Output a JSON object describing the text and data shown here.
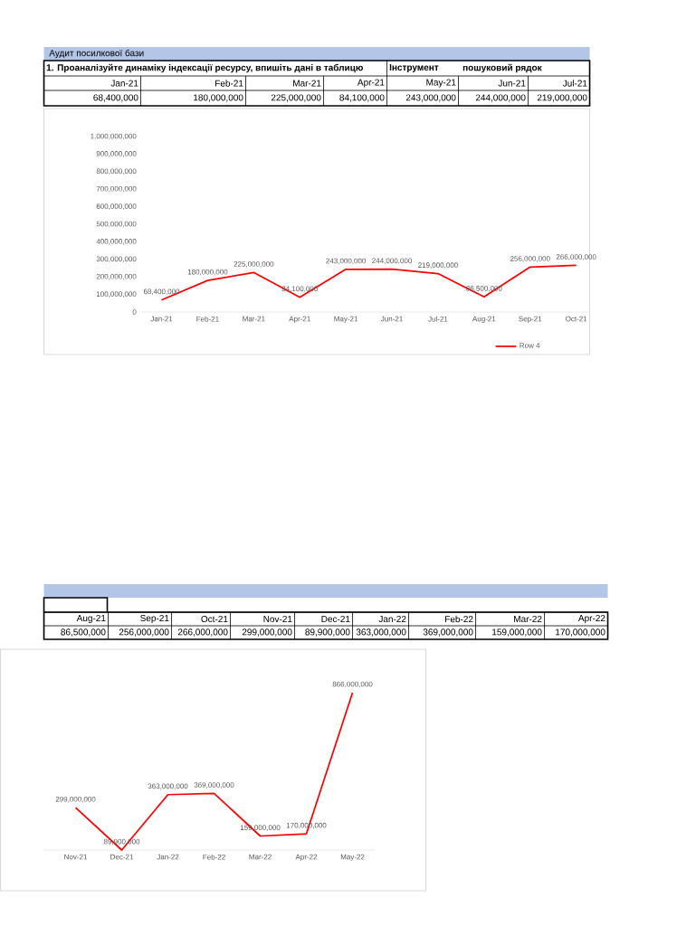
{
  "chart_data": [
    {
      "type": "other",
      "title": "Аудит посилкової бази",
      "annotations": [
        "1. Проаналізуйте динаміку індексації ресурсу, впишіть дані в таблицю",
        "Інструмент",
        "пошуковий рядок"
      ],
      "categories": [
        "Jan-21",
        "Feb-21",
        "Mar-21",
        "Apr-21",
        "May-21",
        "Jun-21",
        "Jul-21"
      ],
      "value_labels": [
        "68,400,000",
        "180,000,000",
        "225,000,000",
        "84,100,000",
        "243,000,000",
        "244,000,000",
        "219,000,000"
      ]
    },
    {
      "type": "line",
      "categories": [
        "Jan-21",
        "Feb-21",
        "Mar-21",
        "Apr-21",
        "May-21",
        "Jun-21",
        "Jul-21",
        "Aug-21",
        "Sep-21",
        "Oct-21"
      ],
      "series": [
        {
          "name": "Row 4",
          "color": "#ff0000",
          "values": [
            68400000,
            180000000,
            225000000,
            84100000,
            243000000,
            244000000,
            219000000,
            86500000,
            256000000,
            266000000
          ],
          "value_labels": [
            "68,400,000",
            "180,000,000",
            "225,000,000",
            "84,100,000",
            "243,000,000",
            "244,000,000",
            "219,000,000",
            "86,500,000",
            "256,000,000",
            "266,000,000"
          ]
        }
      ],
      "ylim": [
        0,
        1000000000
      ],
      "yticks": [
        {
          "value": 0,
          "label": "0"
        },
        {
          "value": 100000000,
          "label": "100,000,000"
        },
        {
          "value": 200000000,
          "label": "200,000,000"
        },
        {
          "value": 300000000,
          "label": "300,000,000"
        },
        {
          "value": 400000000,
          "label": "400,000,000"
        },
        {
          "value": 500000000,
          "label": "500,000,000"
        },
        {
          "value": 600000000,
          "label": "600,000,000"
        },
        {
          "value": 700000000,
          "label": "700,000,000"
        },
        {
          "value": 800000000,
          "label": "800,000,000"
        },
        {
          "value": 900000000,
          "label": "900,000,000"
        },
        {
          "value": 1000000000,
          "label": "1,000,000,000"
        }
      ],
      "legend": "bottom right"
    },
    {
      "type": "other",
      "categories": [
        "Aug-21",
        "Sep-21",
        "Oct-21",
        "Nov-21",
        "Dec-21",
        "Jan-22",
        "Feb-22",
        "Mar-22",
        "Apr-22"
      ],
      "value_labels": [
        "86,500,000",
        "256,000,000",
        "266,000,000",
        "299,000,000",
        "89,900,000",
        "363,000,000",
        "369,000,000",
        "159,000,000",
        "170,000,000"
      ]
    },
    {
      "type": "line",
      "categories": [
        "Nov-21",
        "Dec-21",
        "Jan-22",
        "Feb-22",
        "Mar-22",
        "Apr-22",
        "May-22"
      ],
      "series": [
        {
          "color": "#ff0000",
          "values": [
            299000000,
            89900000,
            363000000,
            369000000,
            159000000,
            170000000,
            866000000
          ],
          "value_labels": [
            "299,000,000",
            "89,900,000",
            "363,000,000",
            "369,000,000",
            "159,000,000",
            "170,000,000",
            "866,000,000"
          ]
        }
      ],
      "tick_labels": "x"
    }
  ]
}
